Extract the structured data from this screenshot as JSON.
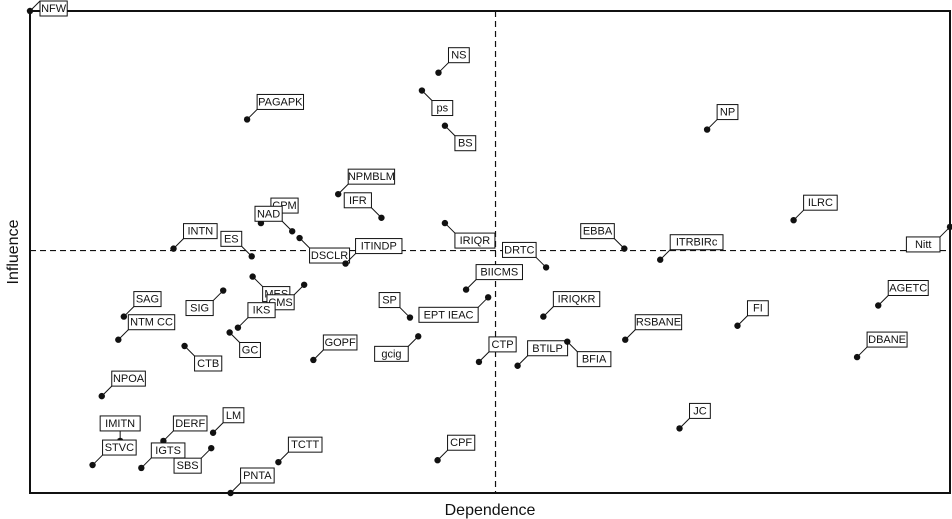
{
  "chart_data": {
    "type": "scatter",
    "xlabel": "Dependence",
    "ylabel": "Influence",
    "xlim": [
      0,
      100
    ],
    "ylim": [
      0,
      100
    ],
    "grid": false,
    "reference_lines": {
      "x": 50.6,
      "y": 50.3
    },
    "points": [
      {
        "label": "NFW",
        "x": 0.0,
        "y": 100.0,
        "dir": "ur"
      },
      {
        "label": "NS",
        "x": 44.4,
        "y": 87.2,
        "dir": "ur"
      },
      {
        "label": "ps",
        "x": 42.6,
        "y": 83.5,
        "dir": "dr"
      },
      {
        "label": "BS",
        "x": 45.1,
        "y": 76.2,
        "dir": "dr"
      },
      {
        "label": "PAGAPK",
        "x": 23.6,
        "y": 77.5,
        "dir": "ur"
      },
      {
        "label": "NP",
        "x": 73.6,
        "y": 75.4,
        "dir": "ur"
      },
      {
        "label": "NPMBLM",
        "x": 33.5,
        "y": 62.0,
        "dir": "ur"
      },
      {
        "label": "ILRC",
        "x": 83.0,
        "y": 56.6,
        "dir": "ur"
      },
      {
        "label": "IFR",
        "x": 38.2,
        "y": 57.1,
        "dir": "ul"
      },
      {
        "label": "CPM",
        "x": 25.1,
        "y": 56.0,
        "dir": "ur"
      },
      {
        "label": "IRIQR",
        "x": 45.1,
        "y": 56.0,
        "dir": "dr"
      },
      {
        "label": "NAD",
        "x": 28.5,
        "y": 54.3,
        "dir": "ul"
      },
      {
        "label": "INTN",
        "x": 15.6,
        "y": 50.7,
        "dir": "ur"
      },
      {
        "label": "DSCLR",
        "x": 29.3,
        "y": 52.9,
        "dir": "dr"
      },
      {
        "label": "ITINDP",
        "x": 34.3,
        "y": 47.6,
        "dir": "ur"
      },
      {
        "label": "DRTC",
        "x": 56.1,
        "y": 46.8,
        "dir": "ul"
      },
      {
        "label": "EBBA",
        "x": 64.6,
        "y": 50.7,
        "dir": "ul"
      },
      {
        "label": "ITRBIRc",
        "x": 68.5,
        "y": 48.4,
        "dir": "ur"
      },
      {
        "label": "Nitt",
        "x": 100.0,
        "y": 55.2,
        "dir": "dl"
      },
      {
        "label": "ES",
        "x": 24.1,
        "y": 49.1,
        "dir": "ul"
      },
      {
        "label": "MES",
        "x": 24.2,
        "y": 44.9,
        "dir": "dr"
      },
      {
        "label": "BIICMS",
        "x": 47.4,
        "y": 42.2,
        "dir": "ur"
      },
      {
        "label": "SAG",
        "x": 10.2,
        "y": 36.6,
        "dir": "ur"
      },
      {
        "label": "SIG",
        "x": 21.0,
        "y": 42.0,
        "dir": "dl"
      },
      {
        "label": "CMS",
        "x": 29.8,
        "y": 43.2,
        "dir": "dl"
      },
      {
        "label": "IRIQKR",
        "x": 55.8,
        "y": 36.6,
        "dir": "ur"
      },
      {
        "label": "SP",
        "x": 41.3,
        "y": 36.4,
        "dir": "ul"
      },
      {
        "label": "EPT IEAC",
        "x": 49.8,
        "y": 40.6,
        "dir": "dl"
      },
      {
        "label": "AGETC",
        "x": 92.2,
        "y": 38.9,
        "dir": "ur"
      },
      {
        "label": "IKS",
        "x": 22.6,
        "y": 34.3,
        "dir": "ur"
      },
      {
        "label": "NTM CC",
        "x": 9.6,
        "y": 31.8,
        "dir": "ur"
      },
      {
        "label": "FI",
        "x": 76.9,
        "y": 34.7,
        "dir": "ur"
      },
      {
        "label": "RSBANE",
        "x": 64.7,
        "y": 31.8,
        "dir": "ur"
      },
      {
        "label": "GC",
        "x": 21.7,
        "y": 33.3,
        "dir": "dr"
      },
      {
        "label": "CTB",
        "x": 16.8,
        "y": 30.5,
        "dir": "dr"
      },
      {
        "label": "GOPF",
        "x": 30.8,
        "y": 27.6,
        "dir": "ur"
      },
      {
        "label": "gcig",
        "x": 42.2,
        "y": 32.5,
        "dir": "dl"
      },
      {
        "label": "CTP",
        "x": 48.8,
        "y": 27.2,
        "dir": "ur"
      },
      {
        "label": "DBANE",
        "x": 89.9,
        "y": 28.2,
        "dir": "ur"
      },
      {
        "label": "BTILP",
        "x": 53.0,
        "y": 26.4,
        "dir": "ur"
      },
      {
        "label": "BFIA",
        "x": 58.4,
        "y": 31.4,
        "dir": "dr"
      },
      {
        "label": "NPOA",
        "x": 7.8,
        "y": 20.1,
        "dir": "ur"
      },
      {
        "label": "JC",
        "x": 70.6,
        "y": 13.4,
        "dir": "ur"
      },
      {
        "label": "DERF",
        "x": 14.5,
        "y": 10.8,
        "dir": "ur"
      },
      {
        "label": "LM",
        "x": 19.9,
        "y": 12.5,
        "dir": "ur"
      },
      {
        "label": "IMITN",
        "x": 9.8,
        "y": 10.8,
        "dir": "u"
      },
      {
        "label": "STVC",
        "x": 6.8,
        "y": 5.8,
        "dir": "ur"
      },
      {
        "label": "IGTS",
        "x": 12.1,
        "y": 5.2,
        "dir": "ur"
      },
      {
        "label": "SBS",
        "x": 19.7,
        "y": 9.3,
        "dir": "dl"
      },
      {
        "label": "TCTT",
        "x": 27.0,
        "y": 6.4,
        "dir": "ur"
      },
      {
        "label": "PNTA",
        "x": 21.8,
        "y": 0.0,
        "dir": "ur"
      },
      {
        "label": "CPF",
        "x": 44.3,
        "y": 6.8,
        "dir": "ur"
      }
    ]
  }
}
